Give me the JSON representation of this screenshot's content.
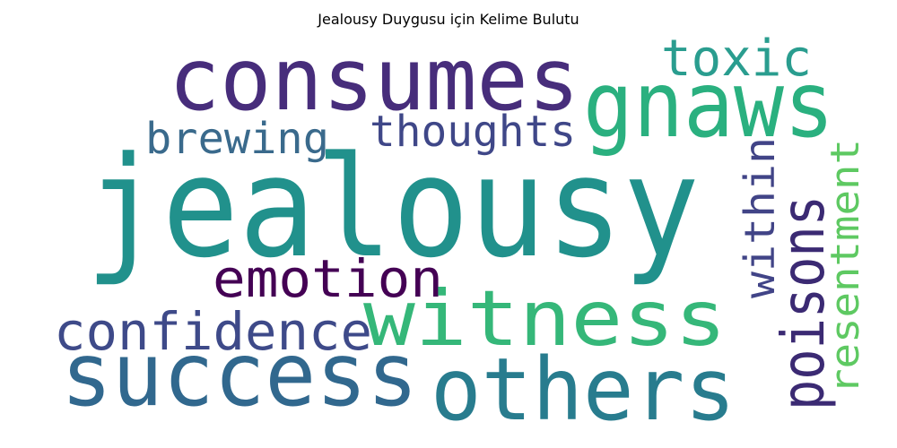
{
  "title": "Jealousy Duygusu için Kelime Bulutu",
  "words": [
    {
      "text": "jealousy",
      "color": "#21918c"
    },
    {
      "text": "consumes",
      "color": "#472d7b"
    },
    {
      "text": "gnaws",
      "color": "#2ab07f"
    },
    {
      "text": "toxic",
      "color": "#2a9d8f"
    },
    {
      "text": "brewing",
      "color": "#3a6a8c"
    },
    {
      "text": "thoughts",
      "color": "#3f4788"
    },
    {
      "text": "within",
      "color": "#414487"
    },
    {
      "text": "poisons",
      "color": "#3b2a73"
    },
    {
      "text": "resentment",
      "color": "#5ec962"
    },
    {
      "text": "emotion",
      "color": "#440154"
    },
    {
      "text": "witness",
      "color": "#35b779"
    },
    {
      "text": "confidence",
      "color": "#3e4a89"
    },
    {
      "text": "success",
      "color": "#31688e"
    },
    {
      "text": "others",
      "color": "#287c8e"
    }
  ]
}
